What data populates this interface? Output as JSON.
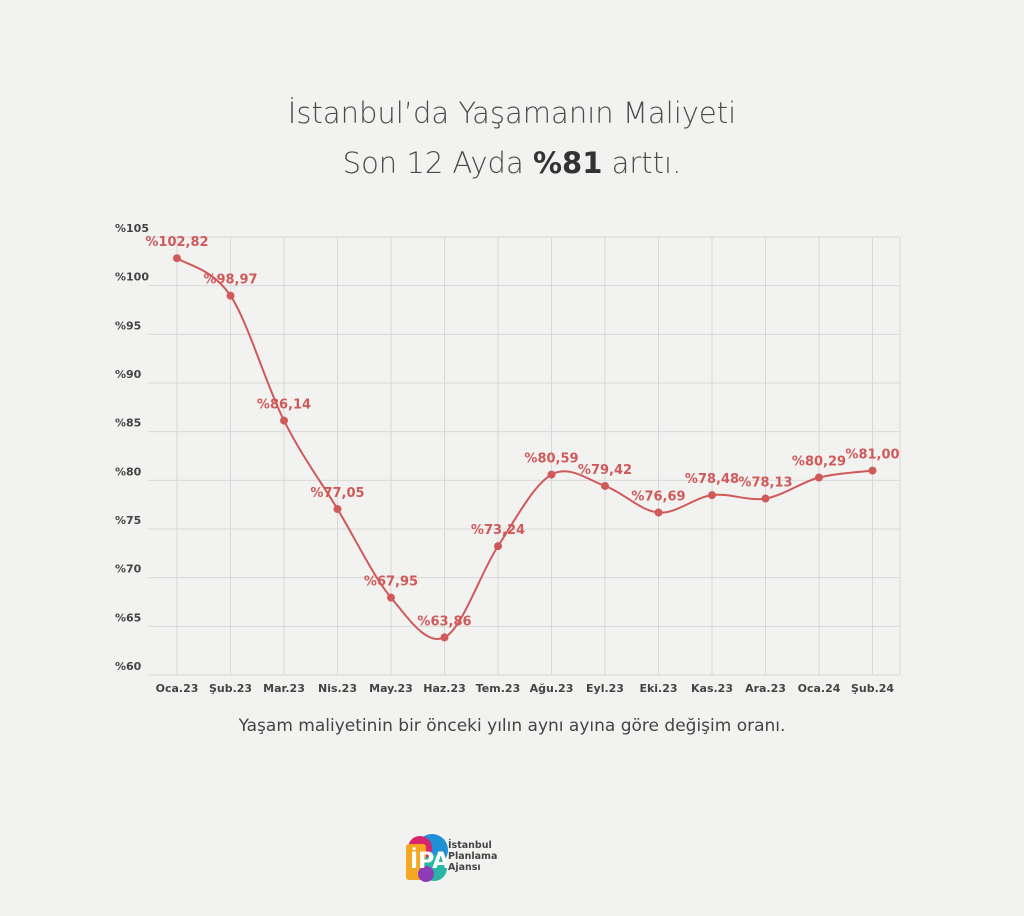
{
  "title_line1": "İstanbul’da Yaşamanın Maliyeti",
  "title_line2_pre": "Son 12 Ayda ",
  "title_line2_bold": "%81",
  "title_line2_post": " arttı.",
  "caption": "Yaşam maliyetinin bir önceki yılın aynı ayına  göre değişim oranı.",
  "logo": {
    "mark": "İPA",
    "line1": "İstanbul",
    "line2": "Planlama",
    "line3": "Ajansı"
  },
  "chart_data": {
    "type": "line",
    "categories": [
      "Oca.23",
      "Şub.23",
      "Mar.23",
      "Nis.23",
      "May.23",
      "Haz.23",
      "Tem.23",
      "Ağu.23",
      "Eyl.23",
      "Eki.23",
      "Kas.23",
      "Ara.23",
      "Oca.24",
      "Şub.24"
    ],
    "values": [
      102.82,
      98.97,
      86.14,
      77.05,
      67.95,
      63.86,
      73.24,
      80.59,
      79.42,
      76.69,
      78.48,
      78.13,
      80.29,
      81.0
    ],
    "data_labels": [
      "%102,82",
      "%98,97",
      "%86,14",
      "%77,05",
      "%67,95",
      "%63,86",
      "%73,24",
      "%80,59",
      "%79,42",
      "%76,69",
      "%78,48",
      "%78,13",
      "%80,29",
      "%81,00"
    ],
    "ylim": [
      60,
      105
    ],
    "yticks": [
      60,
      65,
      70,
      75,
      80,
      85,
      90,
      95,
      100,
      105
    ],
    "ytick_labels": [
      "%60",
      "%65",
      "%70",
      "%75",
      "%80",
      "%85",
      "%90",
      "%95",
      "%100",
      "%105"
    ],
    "grid": true,
    "line_color": "#d05a5a",
    "label_color": "#d05a5a",
    "grid_color": "#d8d8d8"
  }
}
